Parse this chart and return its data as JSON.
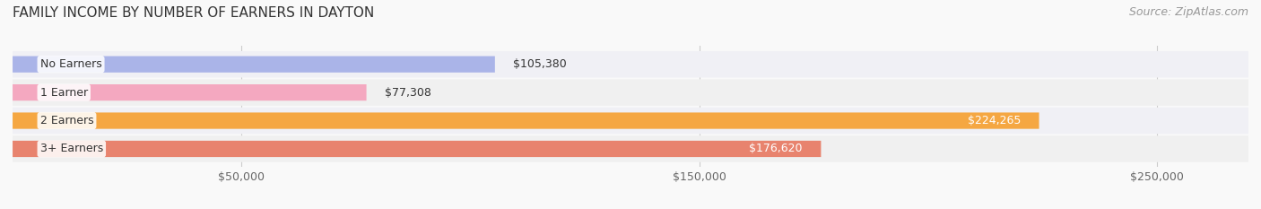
{
  "title": "FAMILY INCOME BY NUMBER OF EARNERS IN DAYTON",
  "source": "Source: ZipAtlas.com",
  "categories": [
    "No Earners",
    "1 Earner",
    "2 Earners",
    "3+ Earners"
  ],
  "values": [
    105380,
    77308,
    224265,
    176620
  ],
  "bar_colors": [
    "#aab4e8",
    "#f4a8c0",
    "#f5a742",
    "#e8836e"
  ],
  "row_bg_colors": [
    "#f0f0f5",
    "#f0f0f0",
    "#f0f0f5",
    "#f0f0f0"
  ],
  "xmin": 0,
  "xmax": 270000,
  "xticks": [
    50000,
    150000,
    250000
  ],
  "xtick_labels": [
    "$50,000",
    "$150,000",
    "$250,000"
  ],
  "title_fontsize": 11,
  "source_fontsize": 9,
  "label_fontsize": 9,
  "bar_label_fontsize": 9,
  "value_formats": [
    "$105,380",
    "$77,308",
    "$224,265",
    "$176,620"
  ],
  "background_color": "#f9f9f9",
  "value_threshold": 120000
}
